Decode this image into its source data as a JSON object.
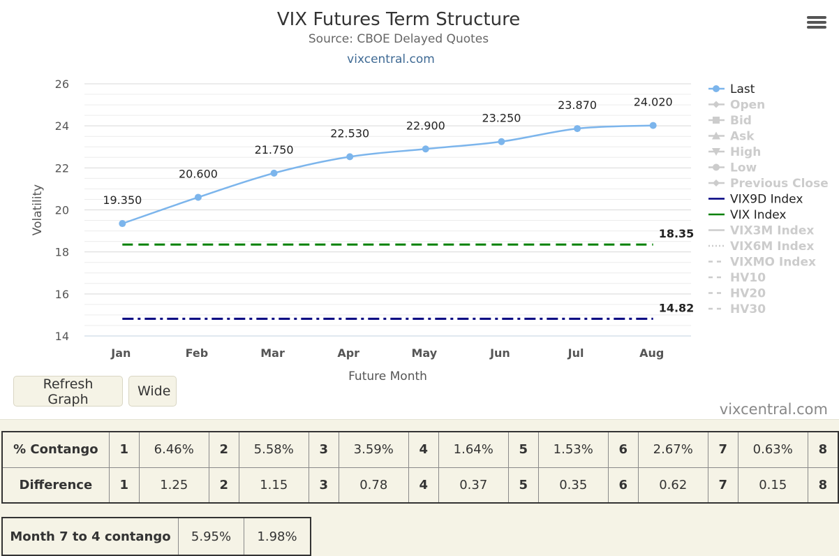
{
  "chart_data": {
    "type": "line",
    "title": "VIX Futures Term Structure",
    "subtitle": "Source: CBOE Delayed Quotes",
    "link_text": "vixcentral.com",
    "xlabel": "Future Month",
    "ylabel": "Volatility",
    "categories": [
      "Jan",
      "Feb",
      "Mar",
      "Apr",
      "May",
      "Jun",
      "Jul",
      "Aug"
    ],
    "ylim": [
      14,
      26
    ],
    "yticks": [
      14,
      16,
      18,
      20,
      22,
      24,
      26
    ],
    "grid": true,
    "legend_position": "right",
    "series": [
      {
        "name": "Last",
        "values": [
          19.35,
          20.6,
          21.75,
          22.53,
          22.9,
          23.25,
          23.87,
          24.02
        ],
        "labels": [
          "19.350",
          "20.600",
          "21.750",
          "22.530",
          "22.900",
          "23.250",
          "23.870",
          "24.020"
        ],
        "color": "#7cb5ec",
        "style": "solid",
        "markers": true
      },
      {
        "name": "VIX9D Index",
        "value": 14.82,
        "label": "14.82",
        "color": "#000080",
        "style": "dashdot"
      },
      {
        "name": "VIX Index",
        "value": 18.35,
        "label": "18.35",
        "color": "#008000",
        "style": "dash"
      }
    ],
    "legend": [
      {
        "name": "Last",
        "active": true,
        "symbol": "circle-line",
        "color": "#7cb5ec"
      },
      {
        "name": "Open",
        "active": false,
        "symbol": "diamond-line"
      },
      {
        "name": "Bid",
        "active": false,
        "symbol": "square-line"
      },
      {
        "name": "Ask",
        "active": false,
        "symbol": "triangle-line"
      },
      {
        "name": "High",
        "active": false,
        "symbol": "triangle-down-line"
      },
      {
        "name": "Low",
        "active": false,
        "symbol": "circle-line"
      },
      {
        "name": "Previous Close",
        "active": false,
        "symbol": "diamond-line"
      },
      {
        "name": "VIX9D Index",
        "active": true,
        "symbol": "line",
        "color": "#000080"
      },
      {
        "name": "VIX Index",
        "active": true,
        "symbol": "line",
        "color": "#008000"
      },
      {
        "name": "VIX3M Index",
        "active": false,
        "symbol": "line"
      },
      {
        "name": "VIX6M Index",
        "active": false,
        "symbol": "dotted"
      },
      {
        "name": "VIXMO Index",
        "active": false,
        "symbol": "dashed"
      },
      {
        "name": "HV10",
        "active": false,
        "symbol": "dashed"
      },
      {
        "name": "HV20",
        "active": false,
        "symbol": "dashed"
      },
      {
        "name": "HV30",
        "active": false,
        "symbol": "dashed"
      }
    ]
  },
  "controls": {
    "refresh_label": "Refresh Graph",
    "wide_label": "Wide",
    "credit": "vixcentral.com",
    "menu_icon": "hamburger-menu-icon"
  },
  "contango_table": {
    "rows": [
      {
        "label": "% Contango",
        "cells": [
          [
            "1",
            "6.46%"
          ],
          [
            "2",
            "5.58%"
          ],
          [
            "3",
            "3.59%"
          ],
          [
            "4",
            "1.64%"
          ],
          [
            "5",
            "1.53%"
          ],
          [
            "6",
            "2.67%"
          ],
          [
            "7",
            "0.63%"
          ],
          [
            "8",
            ""
          ]
        ]
      },
      {
        "label": "Difference",
        "cells": [
          [
            "1",
            "1.25"
          ],
          [
            "2",
            "1.15"
          ],
          [
            "3",
            "0.78"
          ],
          [
            "4",
            "0.37"
          ],
          [
            "5",
            "0.35"
          ],
          [
            "6",
            "0.62"
          ],
          [
            "7",
            "0.15"
          ],
          [
            "8",
            ""
          ]
        ]
      }
    ]
  },
  "summary_table": {
    "label": "Month 7 to 4 contango",
    "values": [
      "5.95%",
      "1.98%"
    ]
  }
}
